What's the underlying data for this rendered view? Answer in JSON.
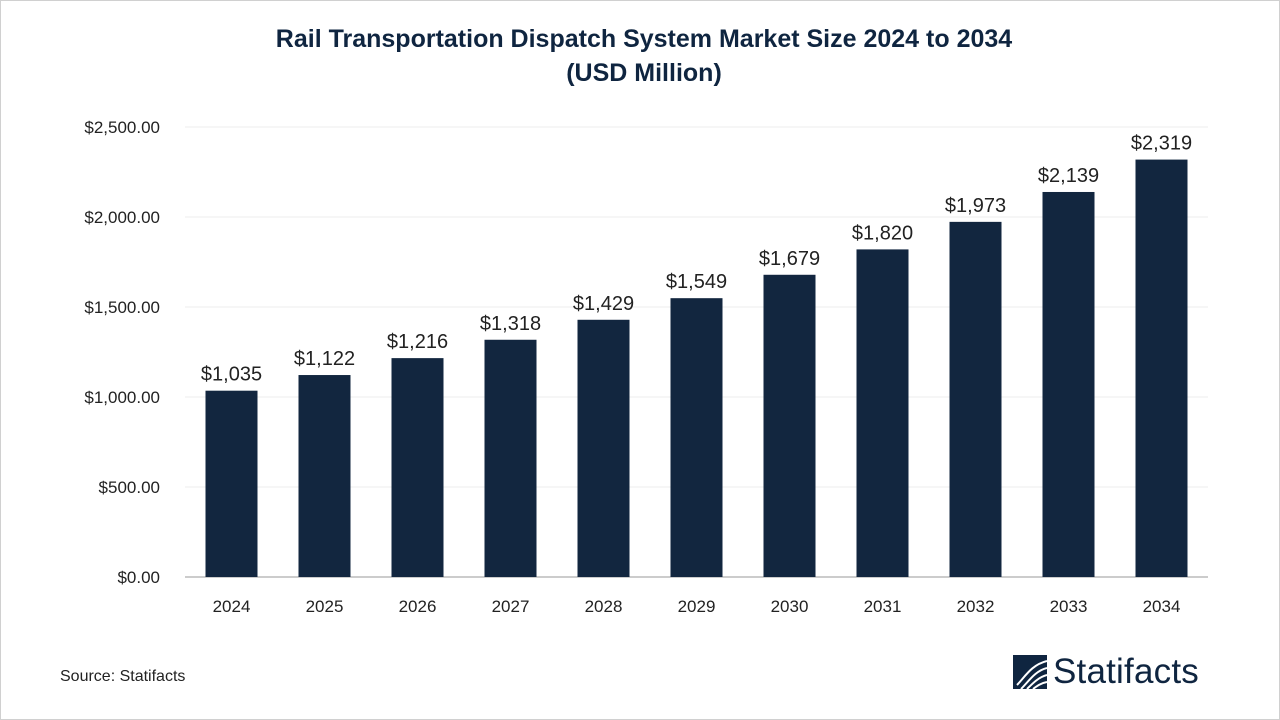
{
  "chart_data": {
    "type": "bar",
    "title": "Rail Transportation Dispatch System Market Size 2024 to 2034",
    "subtitle": "(USD Million)",
    "categories": [
      "2024",
      "2025",
      "2026",
      "2027",
      "2028",
      "2029",
      "2030",
      "2031",
      "2032",
      "2033",
      "2034"
    ],
    "values": [
      1035,
      1122,
      1216,
      1318,
      1429,
      1549,
      1679,
      1820,
      1973,
      2139,
      2319
    ],
    "data_labels": [
      "$1,035",
      "$1,122",
      "$1,216",
      "$1,318",
      "$1,429",
      "$1,549",
      "$1,679",
      "$1,820",
      "$1,973",
      "$2,139",
      "$2,319"
    ],
    "yticks": [
      0,
      500,
      1000,
      1500,
      2000,
      2500
    ],
    "ytick_labels": [
      "$0.00",
      "$500.00",
      "$1,000.00",
      "$1,500.00",
      "$2,000.00",
      "$2,500.00"
    ],
    "ylim": [
      0,
      2500
    ],
    "xlabel": "",
    "ylabel": "",
    "grid": true,
    "bar_color": "#12263f"
  },
  "source": "Source: Statifacts",
  "logo": {
    "text": "Statifacts",
    "color": "#0f2540"
  }
}
